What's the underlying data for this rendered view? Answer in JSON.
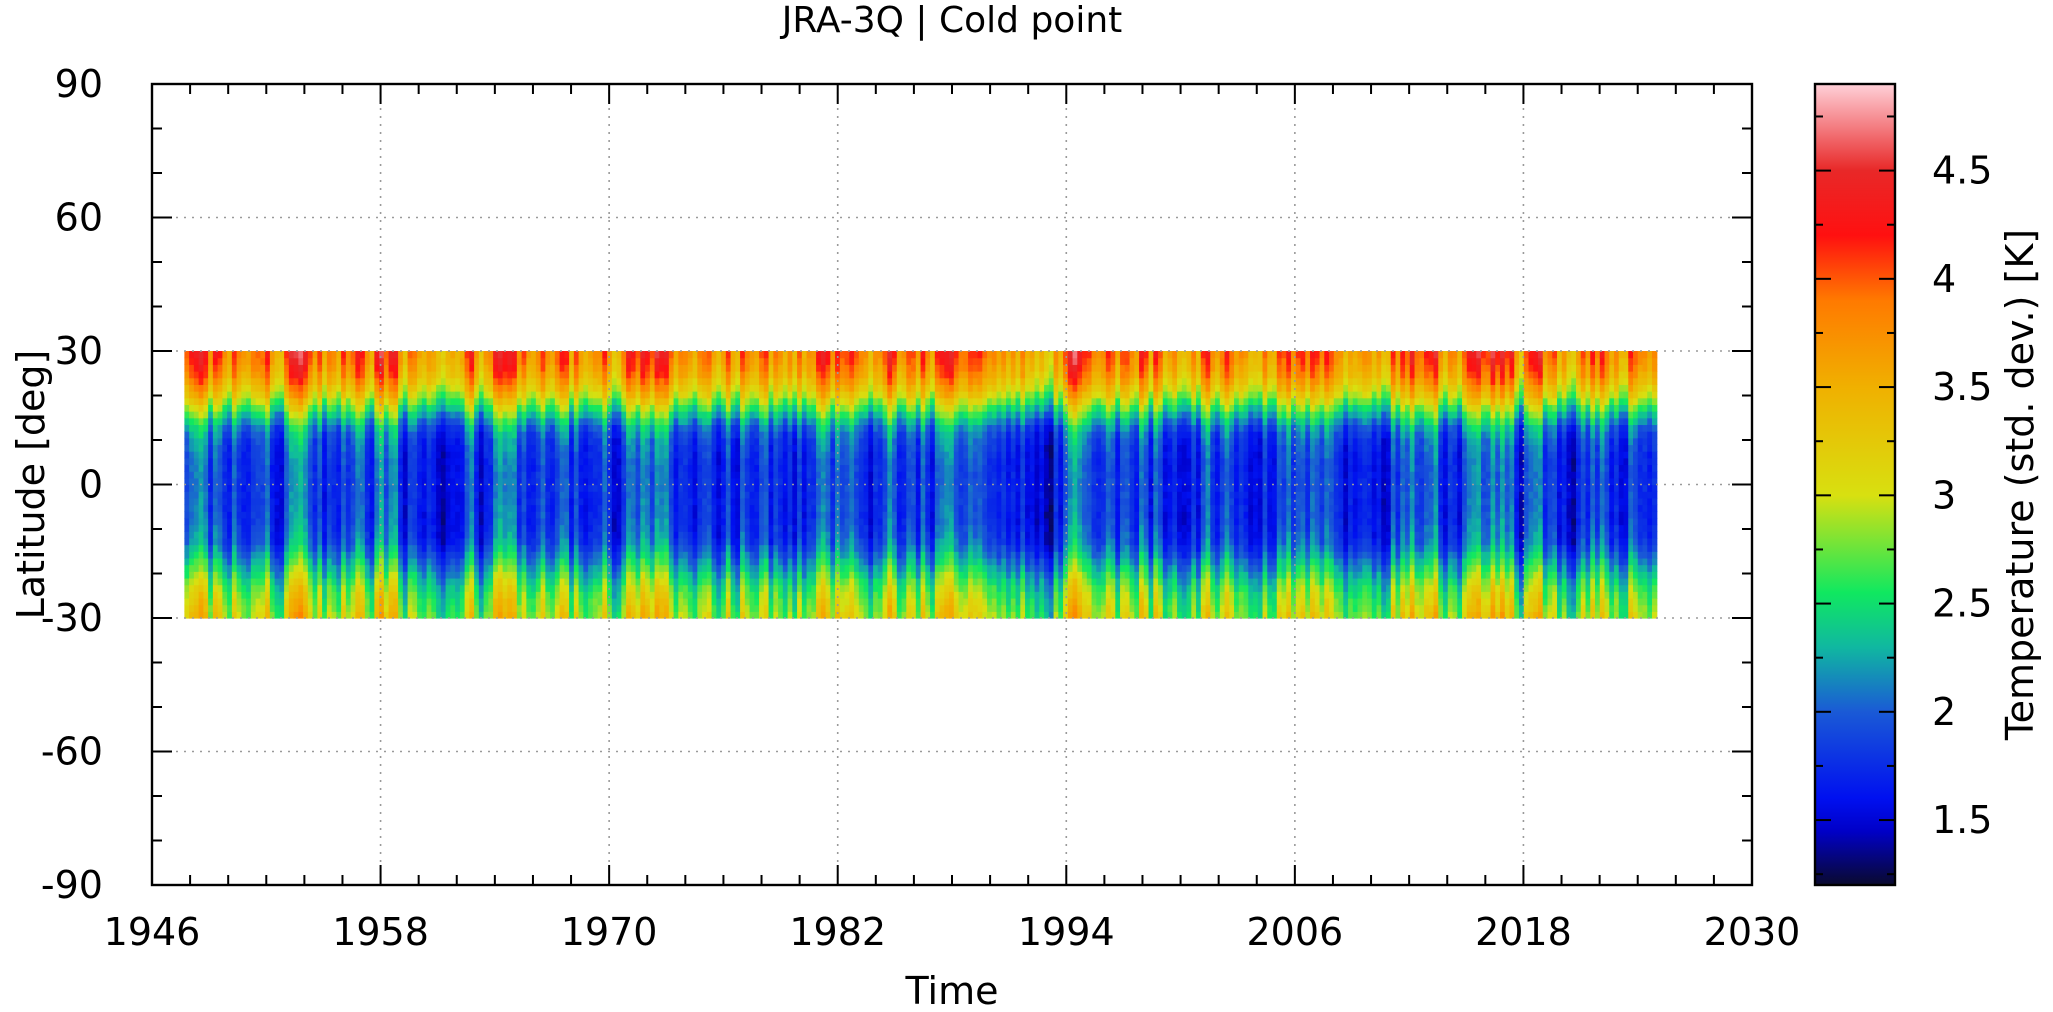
{
  "chart_data": {
    "type": "heatmap",
    "title": "JRA-3Q | Cold point",
    "xlabel": "Time",
    "ylabel": "Latitude [deg]",
    "colorbar_label": "Temperature (std. dev.) [K]",
    "xlim": [
      1946,
      2030
    ],
    "ylim": [
      -90,
      90
    ],
    "x_ticks": [
      1946,
      1958,
      1970,
      1982,
      1994,
      2006,
      2018,
      2030
    ],
    "x_tick_labels": [
      "1946",
      "1958",
      "1970",
      "1982",
      "1994",
      "2006",
      "2018",
      "2030"
    ],
    "y_ticks": [
      -90,
      -60,
      -30,
      0,
      30,
      60,
      90
    ],
    "y_tick_labels": [
      "-90",
      "-60",
      "-30",
      "0",
      "30",
      "60",
      "90"
    ],
    "x_minor_step": 2,
    "y_minor_step": 10,
    "grid": true,
    "colorbar": {
      "range": [
        1.2,
        4.9
      ],
      "ticks": [
        1.5,
        2,
        2.5,
        3,
        3.5,
        4,
        4.5
      ],
      "tick_labels": [
        "1.5",
        "2",
        "2.5",
        "3",
        "3.5",
        "4",
        "4.5"
      ],
      "minor_step": 0.25,
      "placement": "right",
      "colormap": [
        {
          "value": 1.2,
          "color": "#0a0a2e"
        },
        {
          "value": 1.45,
          "color": "#0000c8"
        },
        {
          "value": 1.6,
          "color": "#0010f0"
        },
        {
          "value": 2.0,
          "color": "#1a5ad6"
        },
        {
          "value": 2.3,
          "color": "#10b8a0"
        },
        {
          "value": 2.55,
          "color": "#10e860"
        },
        {
          "value": 3.0,
          "color": "#d8e010"
        },
        {
          "value": 3.5,
          "color": "#f0b000"
        },
        {
          "value": 3.9,
          "color": "#ff7a00"
        },
        {
          "value": 4.2,
          "color": "#ff1010"
        },
        {
          "value": 4.5,
          "color": "#e82828"
        },
        {
          "value": 4.9,
          "color": "#ffd0d8"
        }
      ]
    },
    "data_extent": {
      "time": [
        1947.7,
        2025.0
      ],
      "latitude": [
        -30,
        30
      ]
    },
    "latitude_profile": {
      "latitudes": [
        -30,
        -27.5,
        -25,
        -22.5,
        -20,
        -17.5,
        -15,
        -12.5,
        -10,
        -7.5,
        -5,
        -2.5,
        0,
        2.5,
        5,
        7.5,
        10,
        12.5,
        15,
        17.5,
        20,
        22.5,
        25,
        27.5,
        30
      ],
      "mean_values": [
        3.05,
        2.95,
        2.85,
        2.7,
        2.5,
        2.3,
        2.1,
        1.95,
        1.9,
        1.85,
        1.85,
        1.85,
        1.85,
        1.85,
        1.85,
        1.9,
        1.95,
        2.1,
        2.4,
        2.75,
        3.15,
        3.45,
        3.7,
        3.85,
        3.95
      ]
    },
    "time_variability_amplitude": 0.55
  }
}
